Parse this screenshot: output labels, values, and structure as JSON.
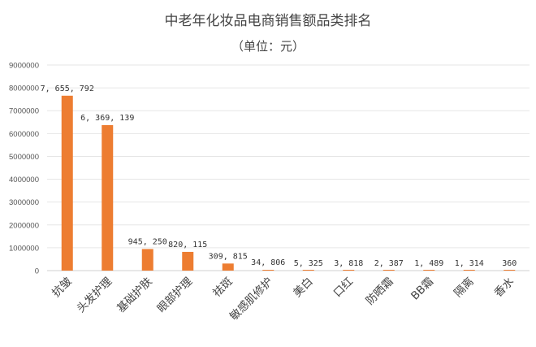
{
  "chart_data": {
    "type": "bar",
    "title": "中老年化妆品电商销售额品类排名",
    "subtitle": "（单位：元）",
    "categories": [
      "抗皱",
      "头发护理",
      "基础护肤",
      "眼部护理",
      "祛斑",
      "敏感肌修护",
      "美白",
      "口红",
      "防晒霜",
      "BB霜",
      "隔离",
      "香水"
    ],
    "values": [
      7655792,
      6369139,
      945250,
      820115,
      309815,
      34806,
      5325,
      3818,
      2387,
      1489,
      1314,
      360
    ],
    "data_labels": [
      "7, 655, 792",
      "6, 369, 139",
      "945, 250",
      "820, 115",
      "309, 815",
      "34, 806",
      "5, 325",
      "3, 818",
      "2, 387",
      "1, 489",
      "1, 314",
      "360"
    ],
    "yticks": [
      0,
      1000000,
      2000000,
      3000000,
      4000000,
      5000000,
      6000000,
      7000000,
      8000000,
      9000000
    ],
    "ylim": [
      0,
      9000000
    ],
    "grid": true,
    "legend": "none",
    "xlabel": "",
    "ylabel": "",
    "colors": {
      "bar": "#ed7d31",
      "grid": "#e6e6e6",
      "text": "#444444"
    }
  }
}
